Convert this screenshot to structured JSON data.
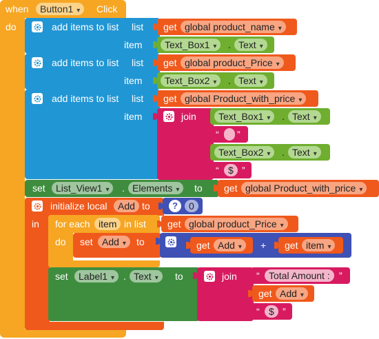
{
  "colors": {
    "event": "#f6a623",
    "list": "#2196d4",
    "variable": "#f0591c",
    "text": "#d81b60",
    "component_green": "#6fae2f",
    "component_dark_green": "#3e8d3e",
    "math": "#3f51b5",
    "control": "#f6a623"
  },
  "when_block": {
    "when": "when",
    "component": "Button1",
    "event": "Click",
    "do": "do"
  },
  "add_items_1": {
    "label": "add items to list",
    "list_kw": "list",
    "item_kw": "item",
    "get_kw": "get",
    "var": "global product_name",
    "component": "Text_Box1",
    "prop": "Text"
  },
  "add_items_2": {
    "label": "add items to list",
    "list_kw": "list",
    "item_kw": "item",
    "get_kw": "get",
    "var": "global product_Price",
    "component": "Text_Box2",
    "prop": "Text"
  },
  "add_items_3": {
    "label": "add items to list",
    "list_kw": "list",
    "item_kw": "item",
    "get_kw": "get",
    "var": "global Product_with_price",
    "join": "join",
    "c1": "Text_Box1",
    "p1": "Text",
    "str1": " ",
    "c2": "Text_Box2",
    "p2": "Text",
    "str2": "$"
  },
  "set_elements": {
    "set_kw": "set",
    "component": "List_View1",
    "prop": "Elements",
    "to_kw": "to",
    "get_kw": "get",
    "var": "global Product_with_price"
  },
  "init_local": {
    "label": "initialize local",
    "name": "Add",
    "to_kw": "to",
    "value": "0",
    "in_kw": "in"
  },
  "for_each": {
    "label": "for each",
    "item": "item",
    "in_list": "in list",
    "get_kw": "get",
    "var": "global product_Price",
    "do": "do"
  },
  "set_add": {
    "set_kw": "set",
    "var": "Add",
    "to_kw": "to",
    "get_kw": "get",
    "lhs": "Add",
    "op": "+",
    "rhs": "item"
  },
  "set_label": {
    "set_kw": "set",
    "component": "Label1",
    "prop": "Text",
    "to_kw": "to",
    "join": "join",
    "str1": "Total Amount :",
    "get_kw": "get",
    "var": "Add",
    "str2": "$"
  }
}
